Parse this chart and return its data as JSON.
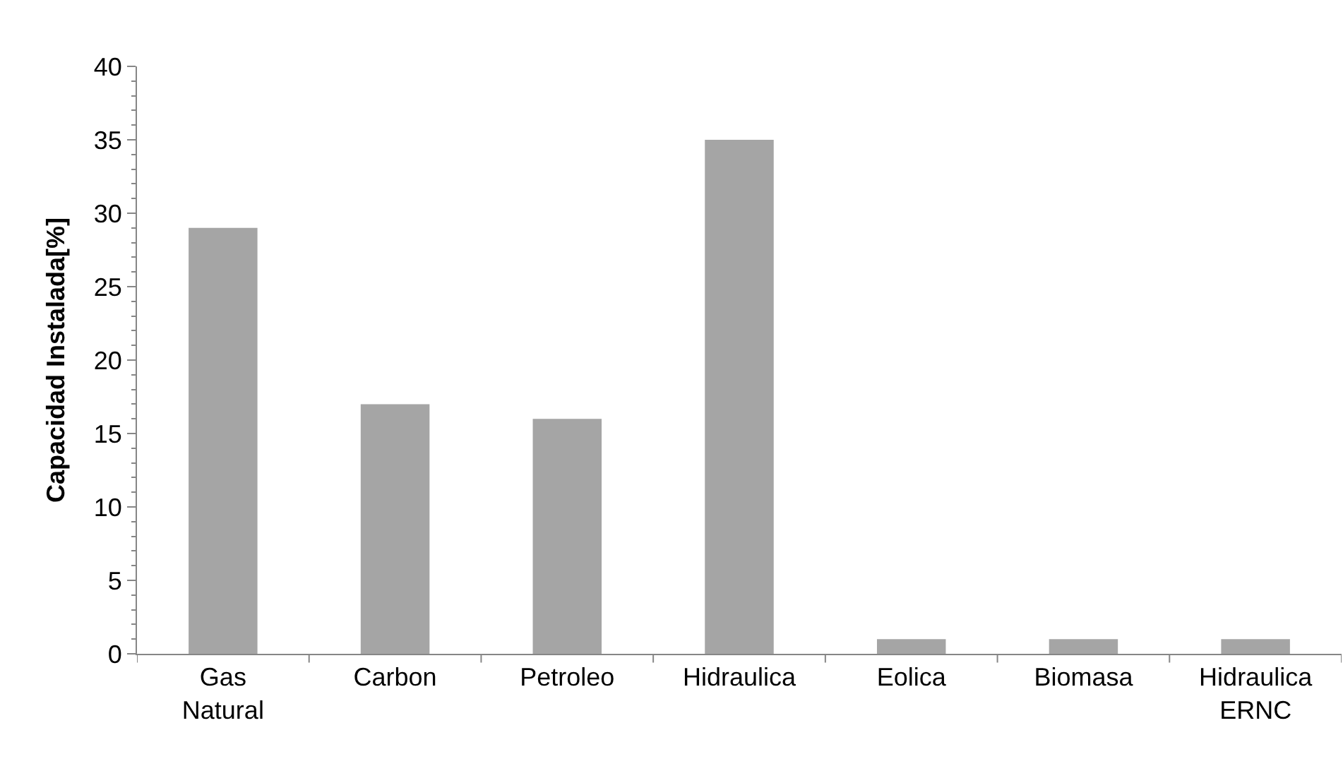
{
  "chart_data": {
    "type": "bar",
    "ylabel": "Capacidad Instalada[%]",
    "categories": [
      "Gas Natural",
      "Carbon",
      "Petroleo",
      "Hidraulica",
      "Eolica",
      "Biomasa",
      "Hidraulica ERNC"
    ],
    "values": [
      29,
      17,
      16,
      35,
      1,
      1,
      1
    ],
    "color": "#a5a5a5",
    "ylim": [
      0,
      40
    ],
    "yticks": [
      0,
      5,
      10,
      15,
      20,
      25,
      30,
      35,
      40
    ]
  }
}
